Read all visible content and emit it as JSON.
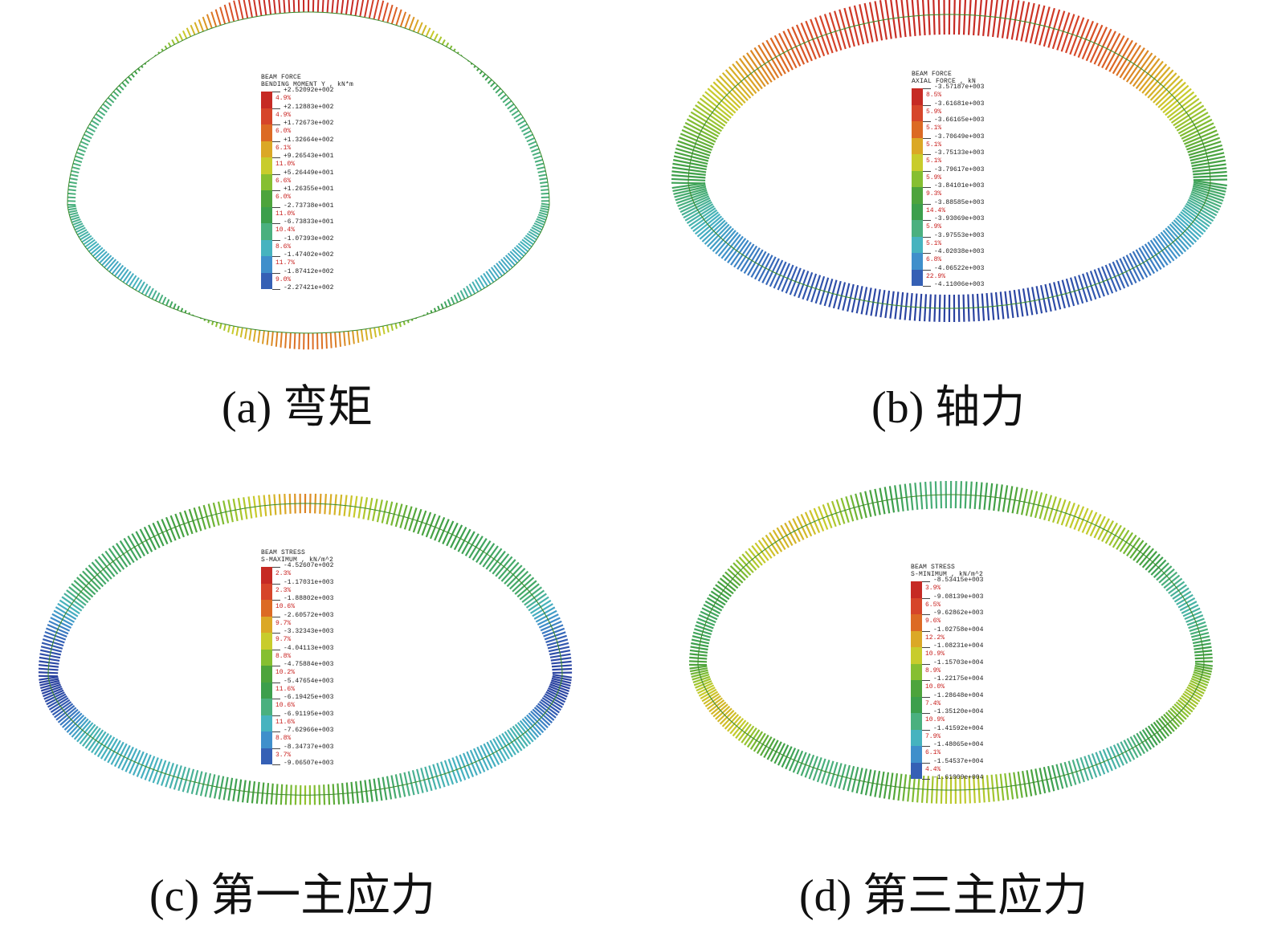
{
  "colors": {
    "scale": [
      "#c62a24",
      "#d6452a",
      "#dc6a24",
      "#dba826",
      "#c8cc2c",
      "#86bf31",
      "#4da43c",
      "#3c9f4c",
      "#4ab07f",
      "#46b3bf",
      "#3f8fcb",
      "#3560b5",
      "#2a42a0"
    ]
  },
  "panels": [
    {
      "id": "a",
      "caption": "(a) 弯矩",
      "legend": {
        "line1": "BEAM FORCE",
        "line2": "BENDING MOMENT Y , kN*m",
        "values": [
          "+2.52092e+002",
          "+2.12883e+002",
          "+1.72673e+002",
          "+1.32664e+002",
          "+9.26543e+001",
          "+5.26449e+001",
          "+1.26355e+001",
          "-2.73738e+001",
          "-6.73833e+001",
          "-1.07393e+002",
          "-1.47402e+002",
          "-1.87412e+002",
          "-2.27421e+002"
        ],
        "percents": [
          "4.9%",
          "4.9%",
          "6.0%",
          "6.1%",
          "11.0%",
          "6.6%",
          "6.0%",
          "11.0%",
          "10.4%",
          "8.6%",
          "11.7%",
          "9.0%"
        ]
      }
    },
    {
      "id": "b",
      "caption": "(b) 轴力",
      "legend": {
        "line1": "BEAM FORCE",
        "line2": "AXIAL FORCE , kN",
        "values": [
          "-3.57187e+003",
          "-3.61681e+003",
          "-3.66165e+003",
          "-3.70649e+003",
          "-3.75133e+003",
          "-3.79617e+003",
          "-3.84101e+003",
          "-3.88585e+003",
          "-3.93069e+003",
          "-3.97553e+003",
          "-4.02038e+003",
          "-4.06522e+003",
          "-4.11006e+003"
        ],
        "percents": [
          "8.5%",
          "5.9%",
          "5.1%",
          "5.1%",
          "5.1%",
          "5.9%",
          "9.3%",
          "14.4%",
          "5.9%",
          "5.1%",
          "6.8%",
          "22.9%"
        ]
      }
    },
    {
      "id": "c",
      "caption": "(c) 第一主应力",
      "legend": {
        "line1": "BEAM STRESS",
        "line2": "S-MAXIMUM , kN/m^2",
        "values": [
          "-4.52607e+002",
          "-1.17031e+003",
          "-1.88802e+003",
          "-2.60572e+003",
          "-3.32343e+003",
          "-4.04113e+003",
          "-4.75884e+003",
          "-5.47654e+003",
          "-6.19425e+003",
          "-6.91195e+003",
          "-7.62966e+003",
          "-8.34737e+003",
          "-9.06507e+003"
        ],
        "percents": [
          "2.3%",
          "2.3%",
          "10.6%",
          "9.7%",
          "9.7%",
          "8.8%",
          "10.2%",
          "11.6%",
          "10.6%",
          "11.6%",
          "8.8%",
          "3.7%"
        ]
      }
    },
    {
      "id": "d",
      "caption": "(d) 第三主应力",
      "legend": {
        "line1": "BEAM STRESS",
        "line2": "S-MINIMUM , kN/m^2",
        "values": [
          "-8.53415e+003",
          "-9.08139e+003",
          "-9.62862e+003",
          "-1.02758e+004",
          "-1.08231e+004",
          "-1.15703e+004",
          "-1.22175e+004",
          "-1.28648e+004",
          "-1.35120e+004",
          "-1.41592e+004",
          "-1.48065e+004",
          "-1.54537e+004",
          "-1.61009e+004"
        ],
        "percents": [
          "3.9%",
          "6.5%",
          "9.6%",
          "12.2%",
          "10.9%",
          "8.9%",
          "10.0%",
          "7.4%",
          "10.9%",
          "7.9%",
          "6.1%",
          "4.4%"
        ]
      }
    }
  ]
}
